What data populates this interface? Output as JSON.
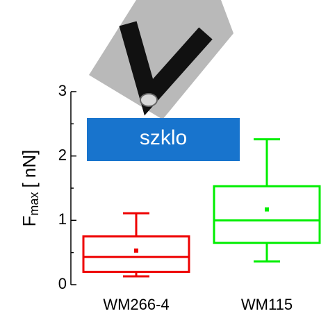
{
  "chart_data": {
    "type": "box",
    "annotation": "szklo",
    "y_label": {
      "main": "F",
      "sub": "max",
      "rest": "[ nN]"
    },
    "categories": [
      "WM266-4",
      "WM115"
    ],
    "series": [
      {
        "color": "#ee0000",
        "whisker_low": 0.13,
        "q1": 0.2,
        "median": 0.43,
        "q3": 0.75,
        "whisker_high": 1.11,
        "mean": 0.53
      },
      {
        "color": "#00ee00",
        "whisker_low": 0.36,
        "q1": 0.65,
        "median": 1.0,
        "q3": 1.53,
        "whisker_high": 2.26,
        "mean": 1.17
      }
    ],
    "ylim": [
      0,
      3
    ],
    "yticks": [
      0,
      1,
      2,
      3
    ],
    "minor_yticks": [
      0.5,
      1.5,
      2.5
    ]
  }
}
